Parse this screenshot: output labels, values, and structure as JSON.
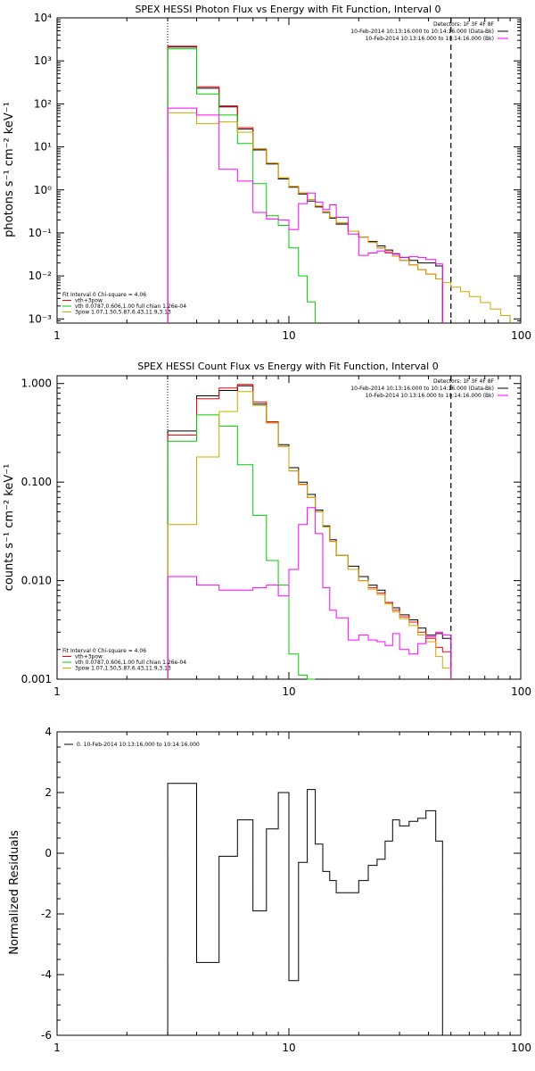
{
  "chart_data": [
    {
      "type": "line",
      "title": "SPEX HESSI Photon Flux vs Energy with Fit Function, Interval 0",
      "ylabel": "photons s⁻¹ cm⁻² keV⁻¹",
      "xlabel": "",
      "xlog": true,
      "ylog": true,
      "xlim": [
        1,
        100
      ],
      "ylim": [
        0.0008,
        10000
      ],
      "xticks": [
        1,
        10,
        100
      ],
      "xtick_labels": [
        "1",
        "10",
        "100"
      ],
      "yticks": [
        0.001,
        0.01,
        0.1,
        1,
        10,
        100,
        1000,
        10000
      ],
      "ytick_labels": [
        "10⁻³",
        "10⁻²",
        "10⁻¹",
        "10⁰",
        "10¹",
        "10²",
        "10³",
        "10⁴"
      ],
      "vlines": [
        {
          "x": 3.0,
          "style": "dotted"
        },
        {
          "x": 50.0,
          "style": "dashed"
        }
      ],
      "legend_top": [
        {
          "text": "Detectors: 1F 3F 4F 8F",
          "color": "#000000"
        },
        {
          "text": "10-Feb-2014 10:13:16.000 to 10:14:16.000 (Data-Bk)",
          "color": "#000000"
        },
        {
          "text": "10-Feb-2014 10:13:16.000 to 10:14:16.000 (Bk)",
          "color": "#ff00ff"
        }
      ],
      "legend_bottom": [
        {
          "text": "Fit Interval 0   Chi-square = 4.06",
          "color": "#000000"
        },
        {
          "text": "vth+3pow",
          "color": "#ff0000"
        },
        {
          "text": "vth 0.0787,0.606,1.00  full chian 1.26e-04",
          "color": "#00cc00"
        },
        {
          "text": "3pow 1.07,1.50,5.87,6.43,11.9,3.13",
          "color": "#ccaa00"
        }
      ],
      "edges": [
        3.0,
        4.0,
        5.0,
        6.0,
        7.0,
        8.0,
        9.0,
        10.0,
        11.0,
        12.0,
        13.0,
        14.0,
        15.0,
        16.0,
        18.0,
        20.0,
        22.0,
        24.0,
        26.0,
        28.0,
        30.0,
        33.0,
        36.0,
        39.0,
        43.0,
        46.0,
        50.0,
        55.0,
        60.0,
        67.0,
        74.0,
        82.0,
        90.0
      ],
      "series": [
        {
          "name": "Data-Bk",
          "color": "#000000",
          "values": [
            2100,
            230,
            85,
            26,
            8.5,
            4.0,
            1.8,
            1.15,
            0.8,
            0.55,
            0.4,
            0.3,
            0.22,
            0.16,
            0.11,
            0.08,
            0.063,
            0.05,
            0.04,
            0.033,
            0.027,
            0.023,
            0.02,
            0.02,
            0.017
          ]
        },
        {
          "name": "vth+3pow",
          "color": "#ff0000",
          "values": [
            2200,
            250,
            90,
            28,
            9.0,
            4.2,
            1.9,
            1.2,
            0.85,
            0.6,
            0.42,
            0.31,
            0.23,
            0.17,
            0.11,
            0.08,
            0.06,
            0.045,
            0.036,
            0.029,
            0.023,
            0.018,
            0.014,
            0.011,
            0.0085
          ]
        },
        {
          "name": "vth",
          "color": "#00cc00",
          "values": [
            1900,
            170,
            55,
            12,
            1.4,
            0.25,
            0.15,
            0.045,
            0.01,
            0.0025
          ]
        },
        {
          "name": "3pow",
          "color": "#ccaa00",
          "values": [
            62,
            35,
            38,
            22,
            9.0,
            4.2,
            1.9,
            1.2,
            0.85,
            0.6,
            0.42,
            0.31,
            0.23,
            0.17,
            0.11,
            0.08,
            0.06,
            0.045,
            0.036,
            0.029,
            0.023,
            0.018,
            0.014,
            0.011,
            0.0085,
            0.007,
            0.0055,
            0.0043,
            0.0033,
            0.0024,
            0.0017,
            0.0012
          ]
        },
        {
          "name": "Bk",
          "color": "#ff00ff",
          "values": [
            80,
            55,
            3.0,
            1.6,
            0.3,
            0.21,
            0.2,
            0.12,
            0.48,
            0.85,
            0.52,
            0.35,
            0.45,
            0.23,
            0.094,
            0.03,
            0.034,
            0.038,
            0.034,
            0.032,
            0.027,
            0.028,
            0.027,
            0.024,
            0.019
          ]
        }
      ]
    },
    {
      "type": "line",
      "title": "SPEX HESSI Count Flux vs Energy with Fit Function, Interval 0",
      "ylabel": "counts s⁻¹ cm⁻² keV⁻¹",
      "xlabel": "",
      "xlog": true,
      "ylog": true,
      "xlim": [
        1,
        100
      ],
      "ylim": [
        0.001,
        1.2
      ],
      "xticks": [
        1,
        10,
        100
      ],
      "xtick_labels": [
        "1",
        "10",
        "100"
      ],
      "yticks": [
        0.001,
        0.01,
        0.1,
        1
      ],
      "ytick_labels": [
        "0.001",
        "0.010",
        "0.100",
        "1.000"
      ],
      "vlines": [
        {
          "x": 3.0,
          "style": "dotted"
        },
        {
          "x": 50.0,
          "style": "dashed"
        }
      ],
      "legend_top": [
        {
          "text": "Detectors: 1F 3F 4F 8F",
          "color": "#000000"
        },
        {
          "text": "10-Feb-2014 10:13:16.000 to 10:14:16.000 (Data-Bk)",
          "color": "#000000"
        },
        {
          "text": "10-Feb-2014 10:13:16.000 to 10:14:16.000 (Bk)",
          "color": "#ff00ff"
        }
      ],
      "legend_bottom": [
        {
          "text": "Fit Interval 0   Chi-square = 4.06",
          "color": "#000000"
        },
        {
          "text": "vth+3pow",
          "color": "#ff0000"
        },
        {
          "text": "vth 0.0787,0.606,1.00  full chian 1.26e-04",
          "color": "#00cc00"
        },
        {
          "text": "3pow 1.07,1.50,5.87,6.43,11.9,3.13",
          "color": "#ccaa00"
        }
      ],
      "edges": [
        3.0,
        4.0,
        5.0,
        6.0,
        7.0,
        8.0,
        9.0,
        10.0,
        11.0,
        12.0,
        13.0,
        14.0,
        15.0,
        16.0,
        18.0,
        20.0,
        22.0,
        24.0,
        26.0,
        28.0,
        30.0,
        33.0,
        36.0,
        39.0,
        43.0,
        46.0,
        50.0
      ],
      "series": [
        {
          "name": "Data-Bk",
          "color": "#000000",
          "values": [
            0.33,
            0.75,
            0.85,
            0.95,
            0.62,
            0.4,
            0.24,
            0.14,
            0.1,
            0.075,
            0.052,
            0.036,
            0.026,
            0.018,
            0.014,
            0.011,
            0.009,
            0.008,
            0.006,
            0.0053,
            0.0045,
            0.004,
            0.0033,
            0.0028,
            0.0029,
            0.0026
          ]
        },
        {
          "name": "vth+3pow",
          "color": "#ff0000",
          "values": [
            0.3,
            0.7,
            0.9,
            0.98,
            0.65,
            0.41,
            0.23,
            0.13,
            0.095,
            0.07,
            0.05,
            0.035,
            0.025,
            0.018,
            0.013,
            0.01,
            0.0085,
            0.0075,
            0.006,
            0.005,
            0.0043,
            0.0038,
            0.003,
            0.0026,
            0.0021,
            0.0019
          ]
        },
        {
          "name": "vth",
          "color": "#00cc00",
          "values": [
            0.26,
            0.48,
            0.37,
            0.15,
            0.046,
            0.016,
            0.009,
            0.0018,
            0.0011,
            0.001
          ]
        },
        {
          "name": "3pow",
          "color": "#ccaa00",
          "values": [
            0.037,
            0.18,
            0.52,
            0.83,
            0.6,
            0.4,
            0.23,
            0.13,
            0.094,
            0.07,
            0.05,
            0.035,
            0.025,
            0.018,
            0.013,
            0.01,
            0.0082,
            0.0072,
            0.0058,
            0.0048,
            0.0041,
            0.0035,
            0.0028,
            0.0024,
            0.0017,
            0.0013
          ]
        },
        {
          "name": "Bk",
          "color": "#ff00ff",
          "values": [
            0.011,
            0.009,
            0.008,
            0.008,
            0.0085,
            0.009,
            0.007,
            0.013,
            0.037,
            0.055,
            0.03,
            0.0085,
            0.005,
            0.0042,
            0.0025,
            0.0028,
            0.0025,
            0.0024,
            0.0022,
            0.0029,
            0.002,
            0.0018,
            0.0023,
            0.0027,
            0.003,
            0.0028
          ]
        }
      ]
    },
    {
      "type": "line",
      "title": "",
      "ylabel": "Normalized Residuals",
      "xlabel": "",
      "xlog": true,
      "ylog": false,
      "xlim": [
        1,
        100
      ],
      "ylim": [
        -6,
        4
      ],
      "xticks": [
        1,
        10,
        100
      ],
      "xtick_labels": [
        "1",
        "10",
        "100"
      ],
      "yticks": [
        -6,
        -4,
        -2,
        0,
        2,
        4
      ],
      "ytick_labels": [
        "-6",
        "-4",
        "-2",
        "0",
        "2",
        "4"
      ],
      "legend_top": [
        {
          "text": "0. 10-Feb-2014 10:13:16.000 to 10:14:16.000",
          "color": "#000000"
        }
      ],
      "edges": [
        3.0,
        4.0,
        5.0,
        6.0,
        7.0,
        8.0,
        9.0,
        10.0,
        11.0,
        12.0,
        13.0,
        14.0,
        15.0,
        16.0,
        18.0,
        20.0,
        22.0,
        24.0,
        26.0,
        28.0,
        30.0,
        33.0,
        36.0,
        39.0,
        43.0,
        46.0,
        50.0
      ],
      "series": [
        {
          "name": "",
          "color": "#000000",
          "values": [
            2.3,
            -3.6,
            -0.1,
            1.1,
            -1.9,
            0.8,
            2.0,
            -4.2,
            -0.3,
            2.1,
            0.3,
            -0.6,
            -0.9,
            -1.3,
            -1.3,
            -0.9,
            -0.4,
            -0.2,
            0.4,
            1.1,
            0.9,
            1.05,
            1.15,
            1.4,
            0.4
          ]
        }
      ]
    }
  ]
}
